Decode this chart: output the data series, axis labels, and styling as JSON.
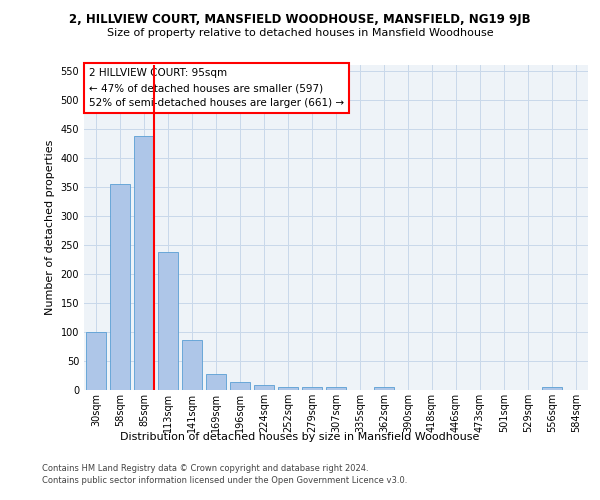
{
  "title1": "2, HILLVIEW COURT, MANSFIELD WOODHOUSE, MANSFIELD, NG19 9JB",
  "title2": "Size of property relative to detached houses in Mansfield Woodhouse",
  "xlabel": "Distribution of detached houses by size in Mansfield Woodhouse",
  "ylabel": "Number of detached properties",
  "footer1": "Contains HM Land Registry data © Crown copyright and database right 2024.",
  "footer2": "Contains public sector information licensed under the Open Government Licence v3.0.",
  "bar_labels": [
    "30sqm",
    "58sqm",
    "85sqm",
    "113sqm",
    "141sqm",
    "169sqm",
    "196sqm",
    "224sqm",
    "252sqm",
    "279sqm",
    "307sqm",
    "335sqm",
    "362sqm",
    "390sqm",
    "418sqm",
    "446sqm",
    "473sqm",
    "501sqm",
    "529sqm",
    "556sqm",
    "584sqm"
  ],
  "bar_values": [
    100,
    355,
    438,
    238,
    86,
    28,
    13,
    9,
    5,
    5,
    5,
    0,
    5,
    0,
    0,
    0,
    0,
    0,
    0,
    5,
    0
  ],
  "bar_color": "#aec6e8",
  "bar_edge_color": "#5a9fd4",
  "grid_color": "#c8d8ea",
  "background_color": "#eef3f8",
  "annotation_line1": "2 HILLVIEW COURT: 95sqm",
  "annotation_line2": "← 47% of detached houses are smaller (597)",
  "annotation_line3": "52% of semi-detached houses are larger (661) →",
  "marker_color": "red",
  "marker_bar_index": 2,
  "ylim": [
    0,
    560
  ],
  "yticks": [
    0,
    50,
    100,
    150,
    200,
    250,
    300,
    350,
    400,
    450,
    500,
    550
  ],
  "title1_fontsize": 8.5,
  "title2_fontsize": 8,
  "ylabel_fontsize": 8,
  "xlabel_fontsize": 8,
  "tick_fontsize": 7,
  "footer_fontsize": 6
}
